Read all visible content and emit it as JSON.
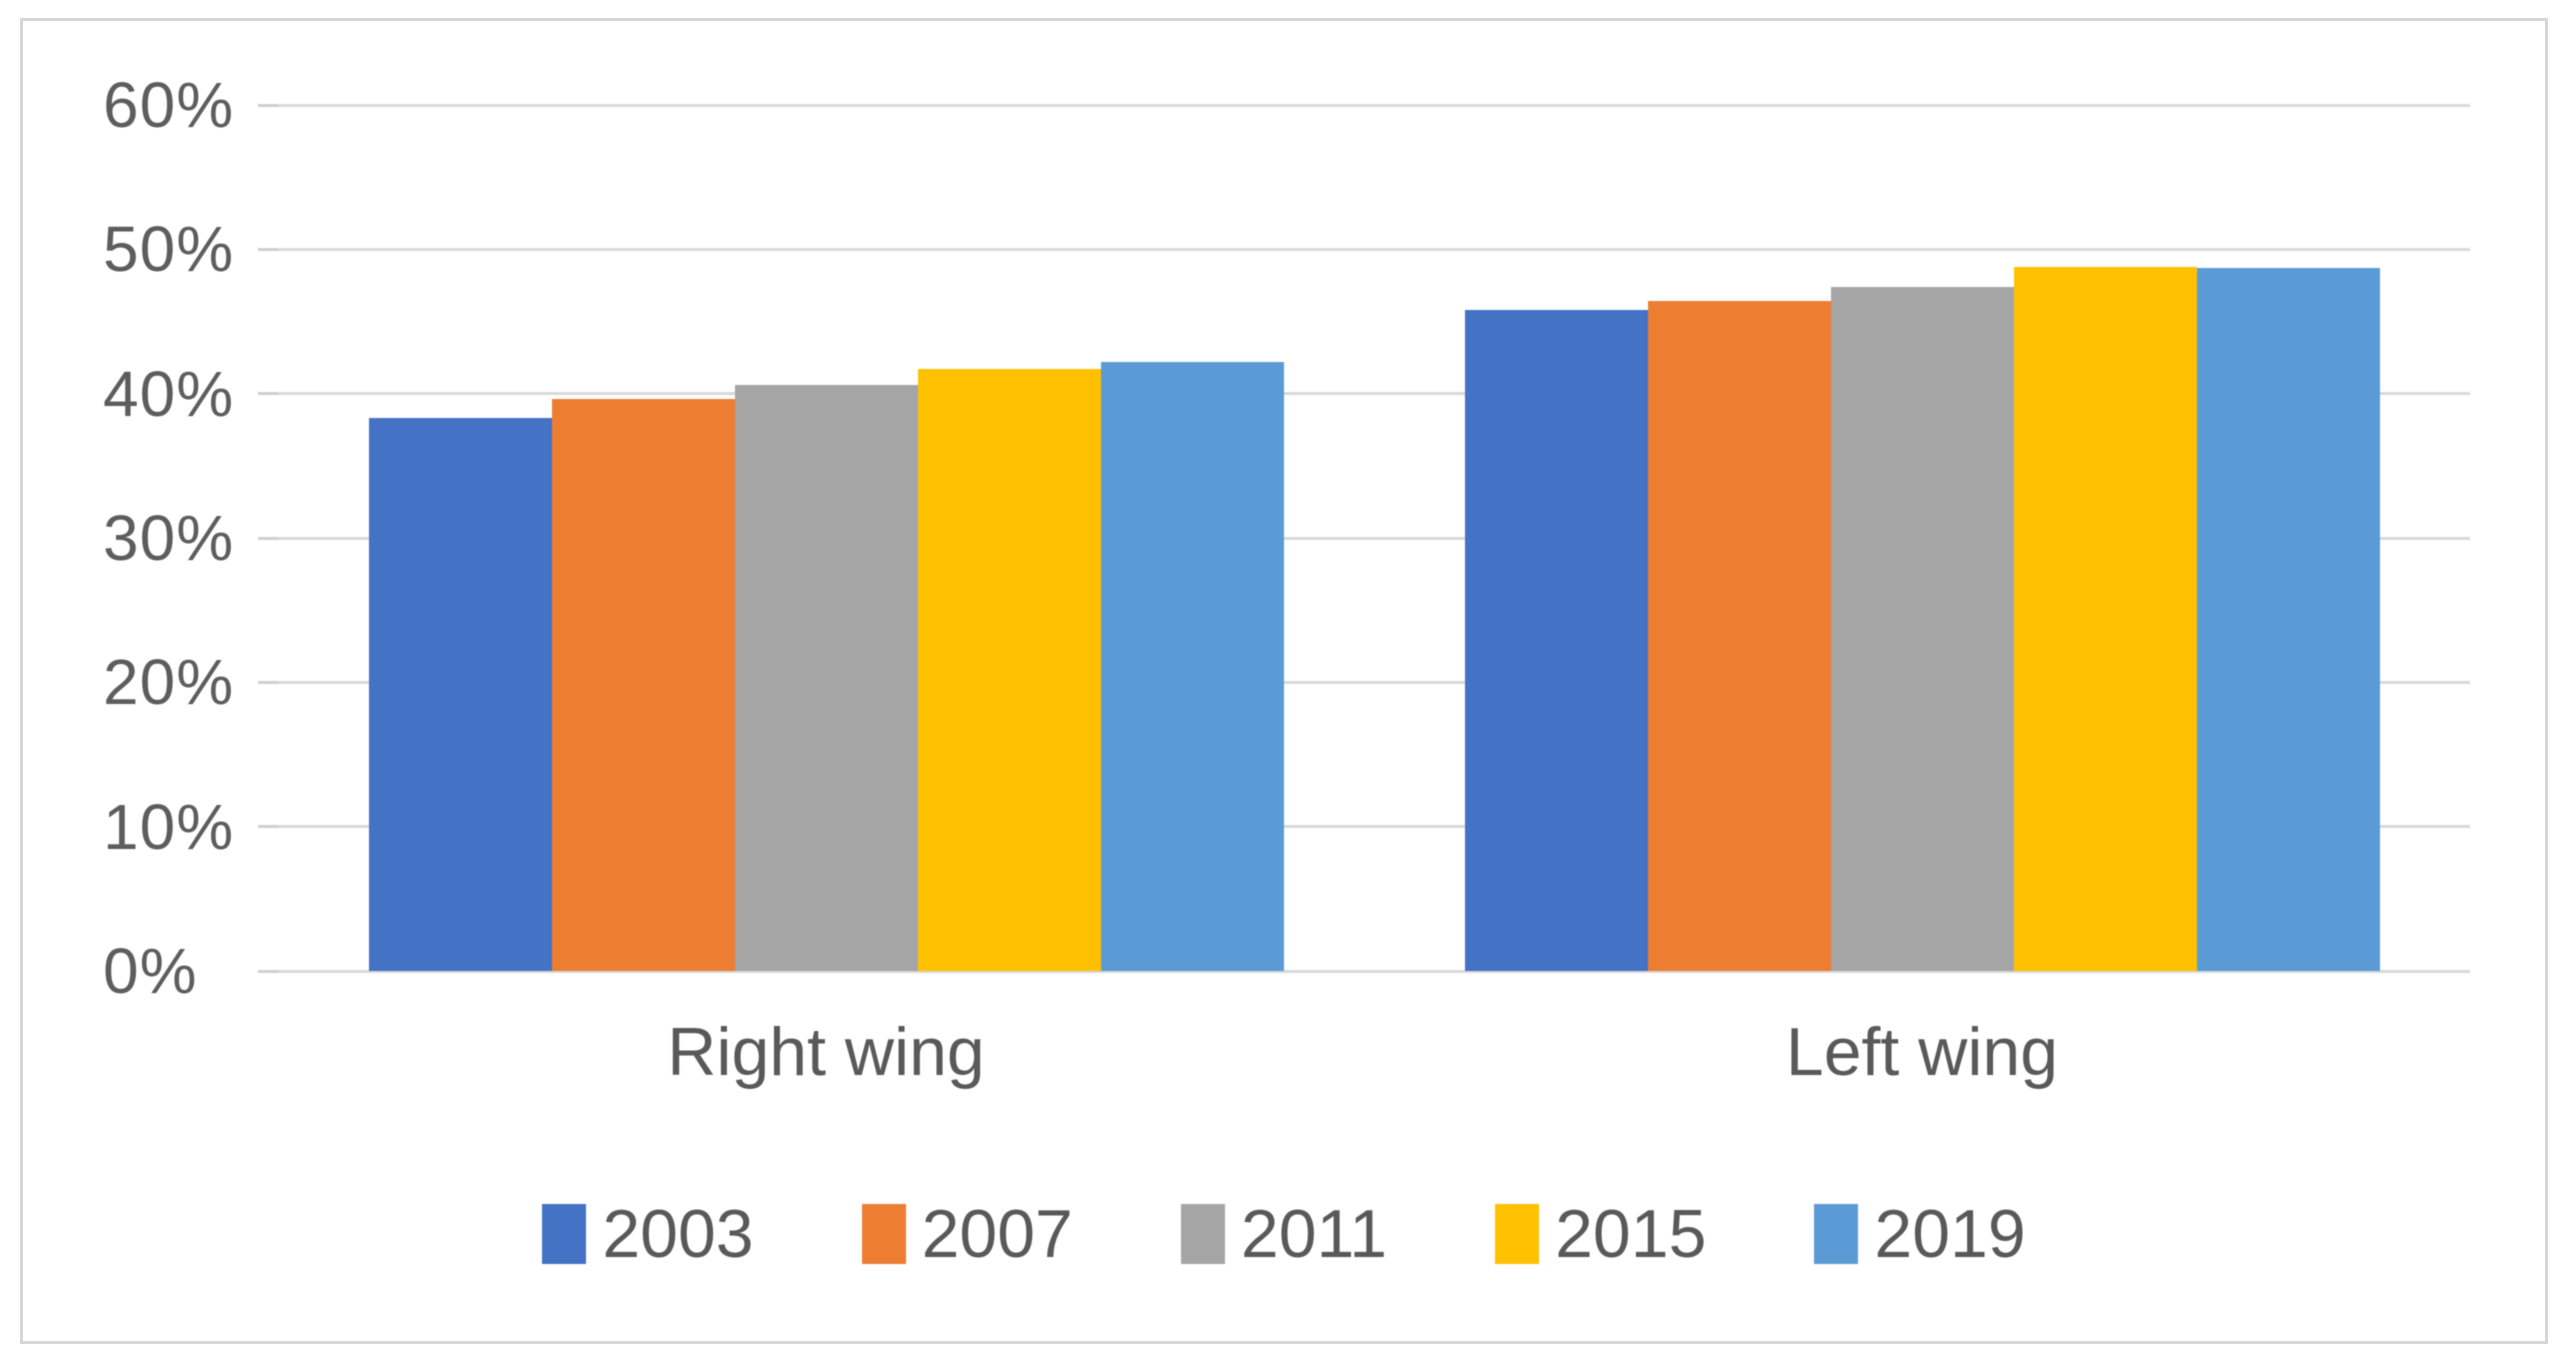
{
  "chart_data": {
    "type": "bar",
    "title": "",
    "xlabel": "",
    "ylabel": "",
    "categories": [
      "Right wing",
      "Left wing"
    ],
    "series": [
      {
        "name": "2003",
        "color": "#4472C4",
        "values": [
          38.3,
          45.8
        ]
      },
      {
        "name": "2007",
        "color": "#ED7D31",
        "values": [
          39.6,
          46.4
        ]
      },
      {
        "name": "2011",
        "color": "#A5A5A5",
        "values": [
          40.6,
          47.4
        ]
      },
      {
        "name": "2015",
        "color": "#FFC000",
        "values": [
          41.7,
          48.8
        ]
      },
      {
        "name": "2019",
        "color": "#5B9BD5",
        "values": [
          42.2,
          48.7
        ]
      }
    ],
    "ylim": [
      0,
      60
    ],
    "ytick_step": 10,
    "ytick_labels": [
      "0%",
      "10%",
      "20%",
      "30%",
      "40%",
      "50%",
      "60%"
    ],
    "grid": true,
    "legend_position": "bottom",
    "legend_labels": [
      "2003",
      "2007",
      "2011",
      "2015",
      "2019"
    ]
  },
  "colors": {
    "background": "#FFFFFF",
    "frame_border": "#D6D6D6",
    "gridline": "#D9D9D9",
    "axis_text": "#595959"
  }
}
